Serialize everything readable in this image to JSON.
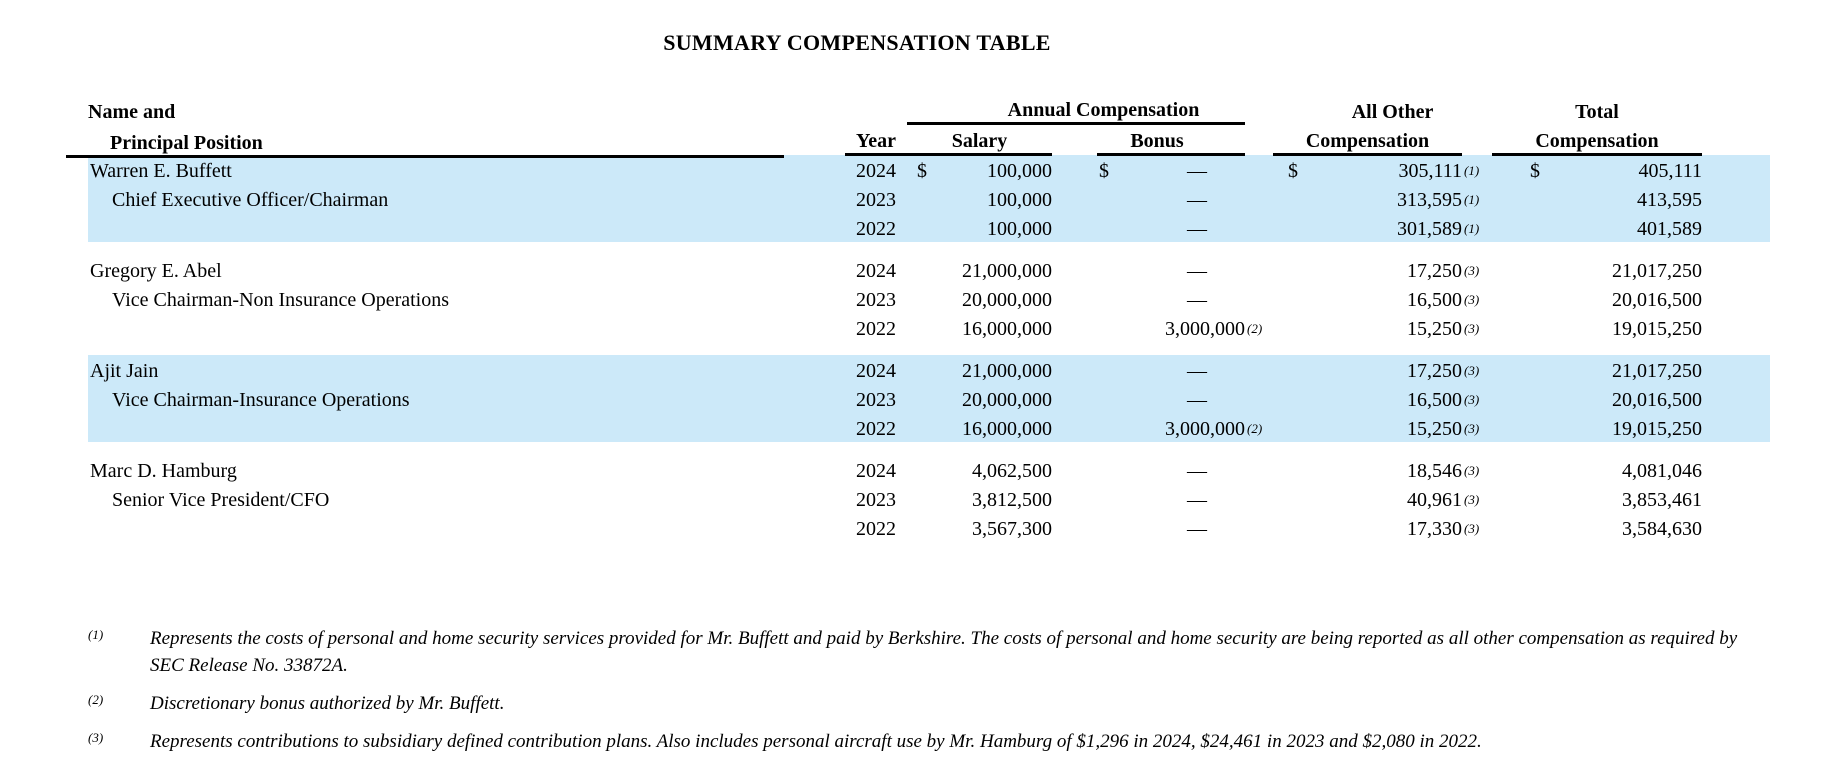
{
  "title": "SUMMARY COMPENSATION TABLE",
  "table": {
    "header": {
      "name1": "Name and",
      "name2": "Principal Position",
      "year": "Year",
      "annual": "Annual Compensation",
      "salary": "Salary",
      "bonus": "Bonus",
      "other1": "All Other",
      "other2": "Compensation",
      "total1": "Total",
      "total2": "Compensation"
    },
    "currency_symbol": "$",
    "dash": "—",
    "highlight_color": "#cce9f9",
    "executives": [
      {
        "name": "Warren E. Buffett",
        "position": "Chief Executive Officer/Chairman",
        "highlighted": true,
        "rows": [
          {
            "year": "2024",
            "show_currency": true,
            "salary": "100,000",
            "bonus": "—",
            "bonus_note": "",
            "other": "305,111",
            "other_note": "(1)",
            "total": "405,111"
          },
          {
            "year": "2023",
            "salary": "100,000",
            "bonus": "—",
            "bonus_note": "",
            "other": "313,595",
            "other_note": "(1)",
            "total": "413,595"
          },
          {
            "year": "2022",
            "salary": "100,000",
            "bonus": "—",
            "bonus_note": "",
            "other": "301,589",
            "other_note": "(1)",
            "total": "401,589"
          }
        ]
      },
      {
        "name": "Gregory E. Abel",
        "position": "Vice Chairman-Non Insurance Operations",
        "highlighted": false,
        "rows": [
          {
            "year": "2024",
            "salary": "21,000,000",
            "bonus": "—",
            "bonus_note": "",
            "other": "17,250",
            "other_note": "(3)",
            "total": "21,017,250"
          },
          {
            "year": "2023",
            "salary": "20,000,000",
            "bonus": "—",
            "bonus_note": "",
            "other": "16,500",
            "other_note": "(3)",
            "total": "20,016,500"
          },
          {
            "year": "2022",
            "salary": "16,000,000",
            "bonus": "3,000,000",
            "bonus_note": "(2)",
            "other": "15,250",
            "other_note": "(3)",
            "total": "19,015,250"
          }
        ]
      },
      {
        "name": "Ajit Jain",
        "position": "Vice Chairman-Insurance Operations",
        "highlighted": true,
        "rows": [
          {
            "year": "2024",
            "salary": "21,000,000",
            "bonus": "—",
            "bonus_note": "",
            "other": "17,250",
            "other_note": "(3)",
            "total": "21,017,250"
          },
          {
            "year": "2023",
            "salary": "20,000,000",
            "bonus": "—",
            "bonus_note": "",
            "other": "16,500",
            "other_note": "(3)",
            "total": "20,016,500"
          },
          {
            "year": "2022",
            "salary": "16,000,000",
            "bonus": "3,000,000",
            "bonus_note": "(2)",
            "other": "15,250",
            "other_note": "(3)",
            "total": "19,015,250"
          }
        ]
      },
      {
        "name": "Marc D. Hamburg",
        "position": "Senior Vice President/CFO",
        "highlighted": false,
        "rows": [
          {
            "year": "2024",
            "salary": "4,062,500",
            "bonus": "—",
            "bonus_note": "",
            "other": "18,546",
            "other_note": "(3)",
            "total": "4,081,046"
          },
          {
            "year": "2023",
            "salary": "3,812,500",
            "bonus": "—",
            "bonus_note": "",
            "other": "40,961",
            "other_note": "(3)",
            "total": "3,853,461"
          },
          {
            "year": "2022",
            "salary": "3,567,300",
            "bonus": "—",
            "bonus_note": "",
            "other": "17,330",
            "other_note": "(3)",
            "total": "3,584,630"
          }
        ]
      }
    ]
  },
  "footnotes": [
    {
      "marker": "(1)",
      "text": "Represents the costs of personal and home security services provided for Mr. Buffett and paid by Berkshire. The costs of personal and home security are being reported as all other compensation as required by SEC Release No. 33872A."
    },
    {
      "marker": "(2)",
      "text": "Discretionary bonus authorized by Mr. Buffett."
    },
    {
      "marker": "(3)",
      "text": "Represents contributions to subsidiary defined contribution plans. Also includes personal aircraft use by Mr. Hamburg of $1,296 in 2024, $24,461 in 2023 and $2,080 in 2022."
    }
  ]
}
